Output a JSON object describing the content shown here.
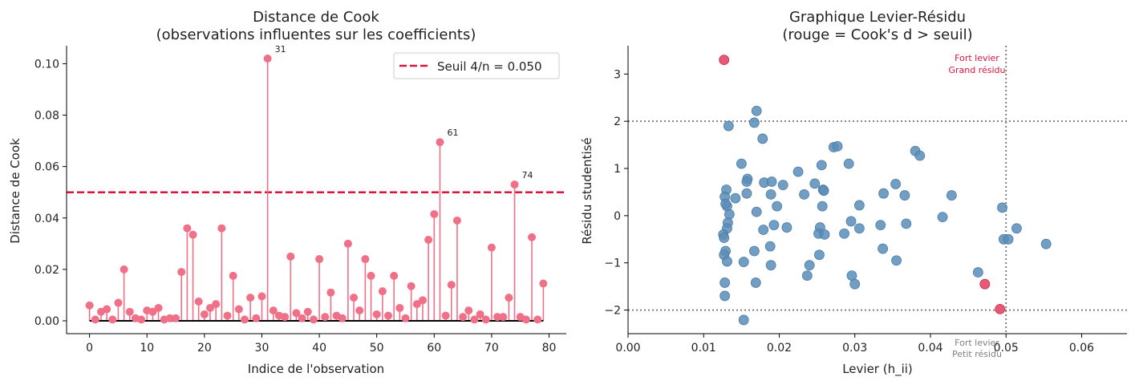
{
  "colors": {
    "stem": "#f07088",
    "threshold": "#dc143c",
    "point_normal": "#5b8db8",
    "point_influent": "#e8506e",
    "annot_red": "#dc143c",
    "annot_gray": "#808080",
    "refline": "#808080"
  },
  "chart_data": [
    {
      "type": "stem",
      "title_line1": "Distance de Cook",
      "title_line2": "(observations influentes sur les coefficients)",
      "xlabel": "Indice de l'observation",
      "ylabel": "Distance de Cook",
      "xlim": [
        -4,
        83
      ],
      "ylim": [
        -0.005,
        0.107
      ],
      "xticks": [
        0,
        10,
        20,
        30,
        40,
        50,
        60,
        70,
        80
      ],
      "xtick_labels": [
        "0",
        "10",
        "20",
        "30",
        "40",
        "50",
        "60",
        "70",
        "80"
      ],
      "yticks": [
        0.0,
        0.02,
        0.04,
        0.06,
        0.08,
        0.1
      ],
      "ytick_labels": [
        "0.00",
        "0.02",
        "0.04",
        "0.06",
        "0.08",
        "0.10"
      ],
      "threshold": 0.05,
      "legend_label": "Seuil 4/n = 0.050",
      "values": [
        0.006,
        0.0005,
        0.0035,
        0.0045,
        0.0005,
        0.007,
        0.02,
        0.0035,
        0.001,
        0.0005,
        0.004,
        0.0035,
        0.005,
        0.0005,
        0.001,
        0.001,
        0.019,
        0.036,
        0.0335,
        0.0075,
        0.0025,
        0.005,
        0.0065,
        0.036,
        0.002,
        0.0175,
        0.0045,
        0.0005,
        0.009,
        0.001,
        0.0095,
        0.102,
        0.004,
        0.002,
        0.0015,
        0.025,
        0.003,
        0.001,
        0.0035,
        0.0005,
        0.024,
        0.0015,
        0.011,
        0.002,
        0.001,
        0.03,
        0.009,
        0.004,
        0.024,
        0.0175,
        0.0025,
        0.0115,
        0.002,
        0.0175,
        0.005,
        0.001,
        0.0135,
        0.0065,
        0.008,
        0.0315,
        0.0415,
        0.0695,
        0.002,
        0.014,
        0.039,
        0.0015,
        0.004,
        0.0005,
        0.0025,
        0.0005,
        0.0285,
        0.0015,
        0.0015,
        0.009,
        0.053,
        0.0015,
        0.0005,
        0.0325,
        0.0005,
        0.0145
      ],
      "annotations": [
        {
          "index": 31,
          "label": "31"
        },
        {
          "index": 61,
          "label": "61"
        },
        {
          "index": 74,
          "label": "74"
        }
      ]
    },
    {
      "type": "scatter",
      "title_line1": "Graphique Levier-Résidu",
      "title_line2": "(rouge = Cook's d > seuil)",
      "xlabel": "Levier (h_ii)",
      "ylabel": "Résidu studentisé",
      "xlim": [
        0.0,
        0.066
      ],
      "ylim": [
        -2.5,
        3.6
      ],
      "xticks": [
        0.0,
        0.01,
        0.02,
        0.03,
        0.04,
        0.05,
        0.06
      ],
      "xtick_labels": [
        "0.00",
        "0.01",
        "0.02",
        "0.03",
        "0.04",
        "0.05",
        "0.06"
      ],
      "yticks": [
        -2,
        -1,
        0,
        1,
        2,
        3
      ],
      "ytick_labels": [
        "−2",
        "−1",
        "0",
        "1",
        "2",
        "3"
      ],
      "hline_values": [
        2,
        -2
      ],
      "vline_value": 0.05,
      "annotation_top_line1": "Fort levier",
      "annotation_top_line2": "Grand résidu",
      "annotation_bottom_line1": "Fort levier",
      "annotation_bottom_line2": "Petit résidu",
      "points": [
        {
          "x": 0.0127,
          "y": 3.3,
          "influent": true
        },
        {
          "x": 0.0472,
          "y": -1.45,
          "influent": true
        },
        {
          "x": 0.0492,
          "y": -1.98,
          "influent": true
        },
        {
          "x": 0.0133,
          "y": 1.9,
          "influent": false
        },
        {
          "x": 0.017,
          "y": 2.22,
          "influent": false
        },
        {
          "x": 0.0167,
          "y": 1.97,
          "influent": false
        },
        {
          "x": 0.0178,
          "y": 1.63,
          "influent": false
        },
        {
          "x": 0.015,
          "y": 1.1,
          "influent": false
        },
        {
          "x": 0.013,
          "y": 0.55,
          "influent": false
        },
        {
          "x": 0.0128,
          "y": 0.4,
          "influent": false
        },
        {
          "x": 0.0131,
          "y": 0.2,
          "influent": false
        },
        {
          "x": 0.0129,
          "y": 0.25,
          "influent": false
        },
        {
          "x": 0.0134,
          "y": 0.03,
          "influent": false
        },
        {
          "x": 0.0132,
          "y": -0.15,
          "influent": false
        },
        {
          "x": 0.0131,
          "y": -0.27,
          "influent": false
        },
        {
          "x": 0.0126,
          "y": -0.4,
          "influent": false
        },
        {
          "x": 0.0127,
          "y": -0.47,
          "influent": false
        },
        {
          "x": 0.0129,
          "y": -0.75,
          "influent": false
        },
        {
          "x": 0.0127,
          "y": -0.83,
          "influent": false
        },
        {
          "x": 0.0131,
          "y": -0.97,
          "influent": false
        },
        {
          "x": 0.0128,
          "y": -1.42,
          "influent": false
        },
        {
          "x": 0.0128,
          "y": -1.7,
          "influent": false
        },
        {
          "x": 0.0142,
          "y": 0.37,
          "influent": false
        },
        {
          "x": 0.0158,
          "y": 0.78,
          "influent": false
        },
        {
          "x": 0.0157,
          "y": 0.72,
          "influent": false
        },
        {
          "x": 0.0157,
          "y": 0.47,
          "influent": false
        },
        {
          "x": 0.017,
          "y": 0.08,
          "influent": false
        },
        {
          "x": 0.0153,
          "y": -0.98,
          "influent": false
        },
        {
          "x": 0.0167,
          "y": -0.75,
          "influent": false
        },
        {
          "x": 0.0169,
          "y": -1.42,
          "influent": false
        },
        {
          "x": 0.0153,
          "y": -2.21,
          "influent": false
        },
        {
          "x": 0.018,
          "y": 0.7,
          "influent": false
        },
        {
          "x": 0.019,
          "y": 0.72,
          "influent": false
        },
        {
          "x": 0.0189,
          "y": 0.45,
          "influent": false
        },
        {
          "x": 0.0197,
          "y": 0.2,
          "influent": false
        },
        {
          "x": 0.0193,
          "y": -0.2,
          "influent": false
        },
        {
          "x": 0.0179,
          "y": -0.3,
          "influent": false
        },
        {
          "x": 0.0188,
          "y": -0.65,
          "influent": false
        },
        {
          "x": 0.0189,
          "y": -1.05,
          "influent": false
        },
        {
          "x": 0.0205,
          "y": 0.65,
          "influent": false
        },
        {
          "x": 0.021,
          "y": -0.25,
          "influent": false
        },
        {
          "x": 0.0225,
          "y": 0.93,
          "influent": false
        },
        {
          "x": 0.0233,
          "y": 0.45,
          "influent": false
        },
        {
          "x": 0.0237,
          "y": -1.27,
          "influent": false
        },
        {
          "x": 0.024,
          "y": -1.05,
          "influent": false
        },
        {
          "x": 0.0247,
          "y": 0.68,
          "influent": false
        },
        {
          "x": 0.0256,
          "y": 1.07,
          "influent": false
        },
        {
          "x": 0.0258,
          "y": 0.55,
          "influent": false
        },
        {
          "x": 0.0259,
          "y": 0.53,
          "influent": false
        },
        {
          "x": 0.0257,
          "y": 0.2,
          "influent": false
        },
        {
          "x": 0.0254,
          "y": -0.25,
          "influent": false
        },
        {
          "x": 0.0252,
          "y": -0.38,
          "influent": false
        },
        {
          "x": 0.026,
          "y": -0.4,
          "influent": false
        },
        {
          "x": 0.0253,
          "y": -0.83,
          "influent": false
        },
        {
          "x": 0.0272,
          "y": 1.45,
          "influent": false
        },
        {
          "x": 0.0277,
          "y": 1.47,
          "influent": false
        },
        {
          "x": 0.0292,
          "y": 1.1,
          "influent": false
        },
        {
          "x": 0.0286,
          "y": -0.38,
          "influent": false
        },
        {
          "x": 0.0295,
          "y": -0.12,
          "influent": false
        },
        {
          "x": 0.0306,
          "y": 0.22,
          "influent": false
        },
        {
          "x": 0.0306,
          "y": -0.27,
          "influent": false
        },
        {
          "x": 0.0296,
          "y": -1.27,
          "influent": false
        },
        {
          "x": 0.03,
          "y": -1.45,
          "influent": false
        },
        {
          "x": 0.0334,
          "y": -0.2,
          "influent": false
        },
        {
          "x": 0.0338,
          "y": 0.47,
          "influent": false
        },
        {
          "x": 0.0337,
          "y": -0.7,
          "influent": false
        },
        {
          "x": 0.0354,
          "y": 0.67,
          "influent": false
        },
        {
          "x": 0.0355,
          "y": -0.95,
          "influent": false
        },
        {
          "x": 0.0366,
          "y": 0.43,
          "influent": false
        },
        {
          "x": 0.0368,
          "y": -0.17,
          "influent": false
        },
        {
          "x": 0.038,
          "y": 1.37,
          "influent": false
        },
        {
          "x": 0.0386,
          "y": 1.27,
          "influent": false
        },
        {
          "x": 0.0416,
          "y": -0.03,
          "influent": false
        },
        {
          "x": 0.0428,
          "y": 0.43,
          "influent": false
        },
        {
          "x": 0.0463,
          "y": -1.2,
          "influent": false
        },
        {
          "x": 0.0495,
          "y": 0.17,
          "influent": false
        },
        {
          "x": 0.0497,
          "y": -0.5,
          "influent": false
        },
        {
          "x": 0.0503,
          "y": -0.5,
          "influent": false
        },
        {
          "x": 0.0514,
          "y": -0.27,
          "influent": false
        },
        {
          "x": 0.0553,
          "y": -0.6,
          "influent": false
        }
      ]
    }
  ]
}
